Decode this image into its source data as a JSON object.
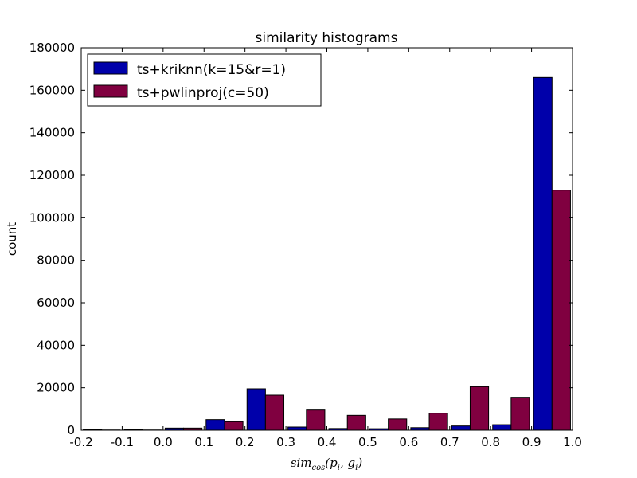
{
  "chart_data": {
    "type": "bar",
    "title": "similarity histograms",
    "xlabel": {
      "base": "sim",
      "sub": "cos",
      "args": "(p",
      "sub_i1": "i",
      "mid": ", g",
      "sub_i2": "i",
      "close": ")"
    },
    "ylabel": "count",
    "xlim": [
      -0.2,
      1.0
    ],
    "ylim": [
      0,
      180000
    ],
    "xticks": [
      "-0.2",
      "-0.1",
      "0.0",
      "0.1",
      "0.2",
      "0.3",
      "0.4",
      "0.5",
      "0.6",
      "0.7",
      "0.8",
      "0.9",
      "1.0"
    ],
    "yticks": [
      "0",
      "20000",
      "40000",
      "60000",
      "80000",
      "100000",
      "120000",
      "140000",
      "160000",
      "180000"
    ],
    "bin_starts": [
      -0.2,
      -0.1,
      0.0,
      0.1,
      0.2,
      0.3,
      0.4,
      0.5,
      0.6,
      0.7,
      0.8,
      0.9
    ],
    "bin_width": 0.1,
    "grid": false,
    "legend_position": "top-left",
    "series": [
      {
        "name": "ts+kriknn(k=15&r=1)",
        "color": "#0000aa",
        "values": [
          200,
          300,
          1000,
          5000,
          19500,
          1500,
          800,
          700,
          1200,
          2000,
          2600,
          166000
        ]
      },
      {
        "name": "ts+pwlinproj(c=50)",
        "color": "#800040",
        "values": [
          100,
          100,
          1000,
          4000,
          16500,
          9500,
          7000,
          5300,
          8000,
          20500,
          15500,
          113000
        ]
      }
    ]
  }
}
